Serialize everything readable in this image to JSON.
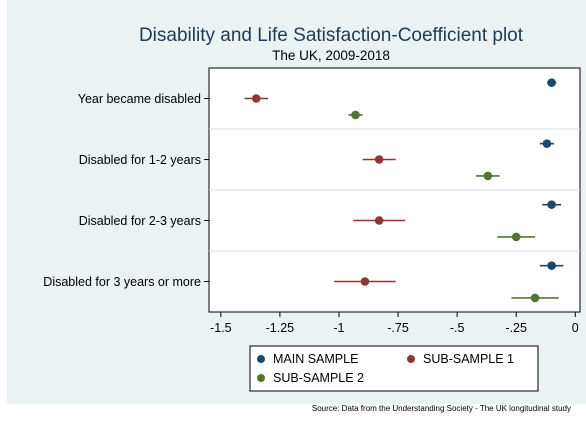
{
  "chart_data": {
    "type": "scatter",
    "title": "Disability and Life Satisfaction-Coefficient plot",
    "subtitle": "The UK, 2009-2018",
    "categories": [
      "Year became disabled",
      "Disabled for 1-2 years",
      "Disabled for 2-3 years",
      "Disabled for 3 years or more"
    ],
    "xlim": [
      -1.55,
      0.02
    ],
    "xticks": [
      "-1.5",
      "-1.25",
      "-1",
      "-.75",
      "-.5",
      "-.25",
      "0"
    ],
    "xtick_values": [
      -1.5,
      -1.25,
      -1,
      -0.75,
      -0.5,
      -0.25,
      0
    ],
    "grid": "horizontal separators between categories",
    "legend_position": "bottom",
    "series": [
      {
        "name": "MAIN SAMPLE",
        "color": "#1a476f",
        "estimate": [
          -0.1,
          -0.12,
          -0.1,
          -0.1
        ],
        "ci_low": [
          -0.12,
          -0.15,
          -0.14,
          -0.15
        ],
        "ci_high": [
          -0.08,
          -0.09,
          -0.06,
          -0.05
        ]
      },
      {
        "name": "SUB-SAMPLE 1",
        "color": "#90353b",
        "estimate": [
          -1.35,
          -0.83,
          -0.83,
          -0.89
        ],
        "ci_low": [
          -1.4,
          -0.9,
          -0.94,
          -1.02
        ],
        "ci_high": [
          -1.3,
          -0.76,
          -0.72,
          -0.76
        ]
      },
      {
        "name": "SUB-SAMPLE 2",
        "color": "#55752f",
        "estimate": [
          -0.93,
          -0.37,
          -0.25,
          -0.17
        ],
        "ci_low": [
          -0.96,
          -0.42,
          -0.33,
          -0.27
        ],
        "ci_high": [
          -0.9,
          -0.32,
          -0.17,
          -0.07
        ]
      }
    ],
    "note": "Source: Data from the Understanding Society - The UK longitudinal study"
  }
}
